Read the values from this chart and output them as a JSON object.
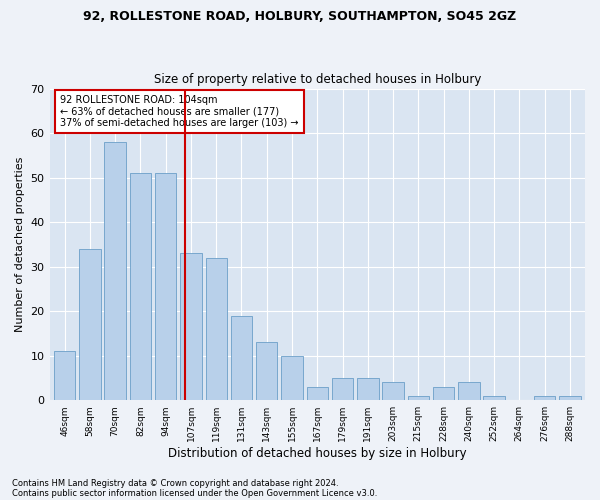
{
  "title1": "92, ROLLESTONE ROAD, HOLBURY, SOUTHAMPTON, SO45 2GZ",
  "title2": "Size of property relative to detached houses in Holbury",
  "xlabel": "Distribution of detached houses by size in Holbury",
  "ylabel": "Number of detached properties",
  "bar_labels": [
    "46sqm",
    "58sqm",
    "70sqm",
    "82sqm",
    "94sqm",
    "107sqm",
    "119sqm",
    "131sqm",
    "143sqm",
    "155sqm",
    "167sqm",
    "179sqm",
    "191sqm",
    "203sqm",
    "215sqm",
    "228sqm",
    "240sqm",
    "252sqm",
    "264sqm",
    "276sqm",
    "288sqm"
  ],
  "bar_values": [
    11,
    34,
    58,
    51,
    51,
    33,
    32,
    19,
    13,
    10,
    3,
    5,
    5,
    4,
    1,
    3,
    4,
    1,
    0,
    1,
    1
  ],
  "bar_color": "#b8d0ea",
  "bar_edge_color": "#6b9fc8",
  "vline_color": "#cc0000",
  "annotation_lines": [
    "92 ROLLESTONE ROAD: 104sqm",
    "← 63% of detached houses are smaller (177)",
    "37% of semi-detached houses are larger (103) →"
  ],
  "annotation_box_color": "#cc0000",
  "ylim": [
    0,
    70
  ],
  "yticks": [
    0,
    10,
    20,
    30,
    40,
    50,
    60,
    70
  ],
  "footer1": "Contains HM Land Registry data © Crown copyright and database right 2024.",
  "footer2": "Contains public sector information licensed under the Open Government Licence v3.0.",
  "bg_color": "#eef2f8",
  "plot_bg_color": "#dae5f2"
}
